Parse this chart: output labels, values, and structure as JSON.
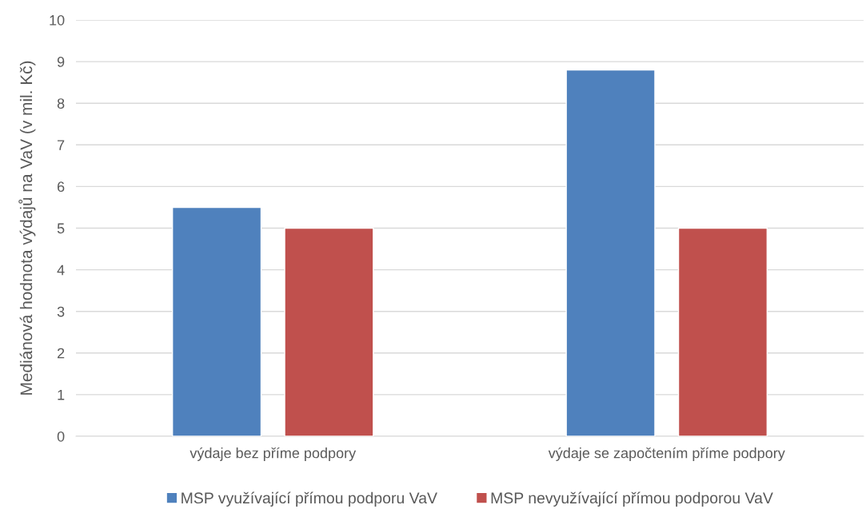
{
  "chart_data": {
    "type": "bar",
    "ylabel": "Mediánová hodnota výdajů na VaV (v mil. Kč)",
    "categories": [
      "výdaje bez příme podpory",
      "výdaje se započtením příme podpory"
    ],
    "series": [
      {
        "name": "MSP využívající přímou podporu VaV",
        "color": "#4f81bd",
        "values": [
          5.5,
          8.8
        ]
      },
      {
        "name": "MSP nevyužívající přímou podporou VaV",
        "color": "#c0504d",
        "values": [
          5.0,
          5.0
        ]
      }
    ],
    "ylim": [
      0,
      10
    ],
    "yticks": [
      0,
      1,
      2,
      3,
      4,
      5,
      6,
      7,
      8,
      9,
      10
    ],
    "grid": "y",
    "legend": "bottom"
  }
}
